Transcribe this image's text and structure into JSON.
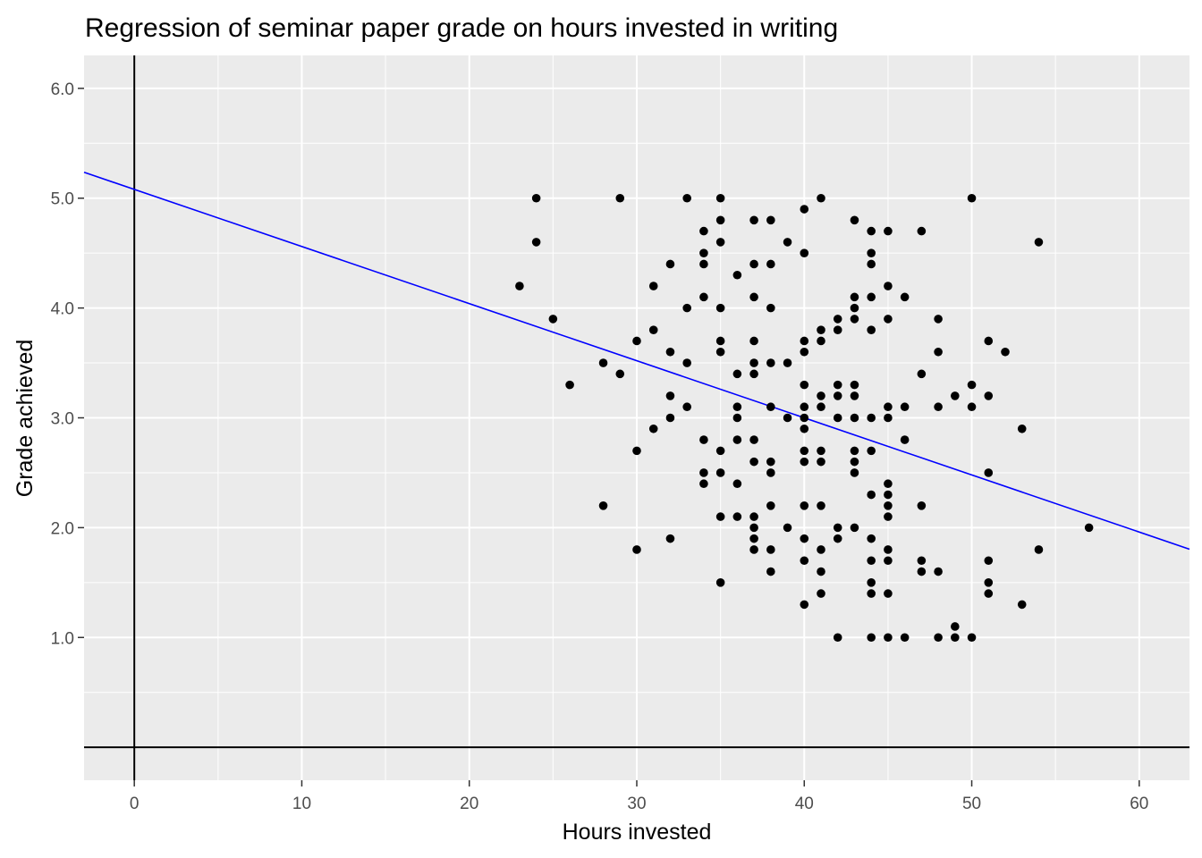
{
  "chart_data": {
    "type": "scatter",
    "title": "Regression of seminar paper grade on hours invested in writing",
    "xlabel": "Hours invested",
    "ylabel": "Grade achieved",
    "xlim": [
      -3,
      63
    ],
    "ylim": [
      -0.3,
      6.3
    ],
    "x_ticks": [
      0,
      10,
      20,
      30,
      40,
      50,
      60
    ],
    "x_tick_labels": [
      "0",
      "10",
      "20",
      "30",
      "40",
      "50",
      "60"
    ],
    "y_ticks": [
      1,
      2,
      3,
      4,
      5,
      6
    ],
    "y_tick_labels": [
      "1.0",
      "2.0",
      "3.0",
      "4.0",
      "5.0",
      "6.0"
    ],
    "grid": true,
    "panel_background": "#ebebeb",
    "grid_color": "#ffffff",
    "point_color": "#000000",
    "regression_color": "#0000ff",
    "reference_line_color": "#000000",
    "reference_lines": {
      "vertical_x": 0,
      "horizontal_y": 0
    },
    "regression_line": {
      "intercept": 5.08,
      "slope": -0.052
    },
    "points": [
      [
        23,
        4.2
      ],
      [
        24,
        5.0
      ],
      [
        24,
        4.6
      ],
      [
        25,
        3.9
      ],
      [
        26,
        3.3
      ],
      [
        28,
        3.5
      ],
      [
        28,
        2.2
      ],
      [
        29,
        5.0
      ],
      [
        29,
        3.4
      ],
      [
        30,
        3.7
      ],
      [
        30,
        2.7
      ],
      [
        30,
        1.8
      ],
      [
        31,
        4.2
      ],
      [
        31,
        3.8
      ],
      [
        31,
        2.9
      ],
      [
        32,
        4.4
      ],
      [
        32,
        3.6
      ],
      [
        32,
        3.2
      ],
      [
        32,
        3.0
      ],
      [
        32,
        1.9
      ],
      [
        33,
        5.0
      ],
      [
        33,
        4.0
      ],
      [
        33,
        3.5
      ],
      [
        33,
        3.1
      ],
      [
        34,
        4.7
      ],
      [
        34,
        4.5
      ],
      [
        34,
        4.4
      ],
      [
        34,
        4.1
      ],
      [
        34,
        2.8
      ],
      [
        34,
        2.5
      ],
      [
        34,
        2.4
      ],
      [
        35,
        5.0
      ],
      [
        35,
        4.8
      ],
      [
        35,
        4.6
      ],
      [
        35,
        4.0
      ],
      [
        35,
        3.7
      ],
      [
        35,
        3.6
      ],
      [
        35,
        2.7
      ],
      [
        35,
        2.5
      ],
      [
        35,
        2.1
      ],
      [
        35,
        1.5
      ],
      [
        36,
        4.3
      ],
      [
        36,
        3.4
      ],
      [
        36,
        3.1
      ],
      [
        36,
        3.0
      ],
      [
        36,
        2.8
      ],
      [
        36,
        2.4
      ],
      [
        36,
        2.1
      ],
      [
        37,
        4.8
      ],
      [
        37,
        4.4
      ],
      [
        37,
        4.1
      ],
      [
        37,
        3.7
      ],
      [
        37,
        3.5
      ],
      [
        37,
        3.4
      ],
      [
        37,
        2.8
      ],
      [
        37,
        2.6
      ],
      [
        37,
        2.1
      ],
      [
        37,
        2.0
      ],
      [
        37,
        1.9
      ],
      [
        37,
        1.8
      ],
      [
        38,
        4.8
      ],
      [
        38,
        4.4
      ],
      [
        38,
        4.0
      ],
      [
        38,
        3.5
      ],
      [
        38,
        3.1
      ],
      [
        38,
        2.6
      ],
      [
        38,
        2.5
      ],
      [
        38,
        2.2
      ],
      [
        38,
        1.8
      ],
      [
        38,
        1.6
      ],
      [
        39,
        4.6
      ],
      [
        39,
        3.5
      ],
      [
        39,
        3.0
      ],
      [
        39,
        2.0
      ],
      [
        40,
        4.9
      ],
      [
        40,
        4.5
      ],
      [
        40,
        3.7
      ],
      [
        40,
        3.6
      ],
      [
        40,
        3.3
      ],
      [
        40,
        3.1
      ],
      [
        40,
        3.0
      ],
      [
        40,
        2.9
      ],
      [
        40,
        2.7
      ],
      [
        40,
        2.6
      ],
      [
        40,
        2.2
      ],
      [
        40,
        1.9
      ],
      [
        40,
        1.7
      ],
      [
        40,
        1.3
      ],
      [
        41,
        5.0
      ],
      [
        41,
        3.8
      ],
      [
        41,
        3.7
      ],
      [
        41,
        3.2
      ],
      [
        41,
        3.1
      ],
      [
        41,
        2.7
      ],
      [
        41,
        2.6
      ],
      [
        41,
        2.2
      ],
      [
        41,
        1.8
      ],
      [
        41,
        1.6
      ],
      [
        41,
        1.4
      ],
      [
        42,
        3.9
      ],
      [
        42,
        3.8
      ],
      [
        42,
        3.3
      ],
      [
        42,
        3.2
      ],
      [
        42,
        3.0
      ],
      [
        42,
        2.0
      ],
      [
        42,
        1.9
      ],
      [
        42,
        1.0
      ],
      [
        43,
        4.8
      ],
      [
        43,
        4.1
      ],
      [
        43,
        4.0
      ],
      [
        43,
        3.9
      ],
      [
        43,
        3.3
      ],
      [
        43,
        3.2
      ],
      [
        43,
        3.0
      ],
      [
        43,
        2.7
      ],
      [
        43,
        2.6
      ],
      [
        43,
        2.5
      ],
      [
        43,
        2.0
      ],
      [
        44,
        4.7
      ],
      [
        44,
        4.5
      ],
      [
        44,
        4.4
      ],
      [
        44,
        4.1
      ],
      [
        44,
        3.8
      ],
      [
        44,
        3.0
      ],
      [
        44,
        2.7
      ],
      [
        44,
        2.3
      ],
      [
        44,
        1.9
      ],
      [
        44,
        1.7
      ],
      [
        44,
        1.5
      ],
      [
        44,
        1.4
      ],
      [
        44,
        1.0
      ],
      [
        45,
        4.7
      ],
      [
        45,
        4.2
      ],
      [
        45,
        3.9
      ],
      [
        45,
        3.1
      ],
      [
        45,
        3.0
      ],
      [
        45,
        2.4
      ],
      [
        45,
        2.3
      ],
      [
        45,
        2.2
      ],
      [
        45,
        2.1
      ],
      [
        45,
        1.8
      ],
      [
        45,
        1.7
      ],
      [
        45,
        1.4
      ],
      [
        45,
        1.0
      ],
      [
        46,
        4.1
      ],
      [
        46,
        3.1
      ],
      [
        46,
        2.8
      ],
      [
        46,
        1.0
      ],
      [
        47,
        4.7
      ],
      [
        47,
        3.4
      ],
      [
        47,
        2.2
      ],
      [
        47,
        1.7
      ],
      [
        47,
        1.6
      ],
      [
        48,
        3.9
      ],
      [
        48,
        3.6
      ],
      [
        48,
        3.1
      ],
      [
        48,
        1.6
      ],
      [
        48,
        1.0
      ],
      [
        49,
        3.2
      ],
      [
        49,
        1.1
      ],
      [
        49,
        1.0
      ],
      [
        50,
        5.0
      ],
      [
        50,
        3.3
      ],
      [
        50,
        3.1
      ],
      [
        50,
        1.0
      ],
      [
        51,
        3.7
      ],
      [
        51,
        3.2
      ],
      [
        51,
        2.5
      ],
      [
        51,
        1.7
      ],
      [
        51,
        1.5
      ],
      [
        51,
        1.4
      ],
      [
        52,
        3.6
      ],
      [
        53,
        2.9
      ],
      [
        53,
        1.3
      ],
      [
        54,
        4.6
      ],
      [
        54,
        1.8
      ],
      [
        57,
        2.0
      ]
    ]
  }
}
